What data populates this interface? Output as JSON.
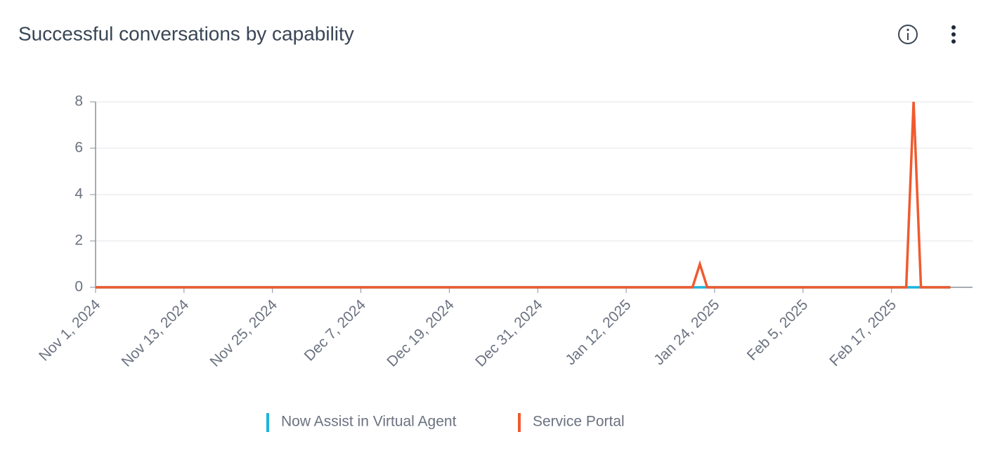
{
  "chart_data": {
    "type": "line",
    "title": "Successful conversations by capability",
    "x": [
      "2024-11-01",
      "2025-01-21",
      "2025-01-22",
      "2025-01-23",
      "2025-02-19",
      "2025-02-20",
      "2025-02-21",
      "2025-02-25"
    ],
    "series": [
      {
        "name": "Now Assist in Virtual Agent",
        "color": "#1cb4de",
        "values": [
          0,
          0,
          0,
          0,
          0,
          0,
          0,
          0
        ]
      },
      {
        "name": "Service Portal",
        "color": "#f05a2e",
        "values": [
          0,
          0,
          1,
          0,
          0,
          8,
          0,
          0
        ]
      }
    ],
    "xlim": [
      "2024-11-01",
      "2025-02-28"
    ],
    "xticks": [
      {
        "value": "2024-11-01",
        "label": "Nov 1, 2024"
      },
      {
        "value": "2024-11-13",
        "label": "Nov 13, 2024"
      },
      {
        "value": "2024-11-25",
        "label": "Nov 25, 2024"
      },
      {
        "value": "2024-12-07",
        "label": "Dec 7, 2024"
      },
      {
        "value": "2024-12-19",
        "label": "Dec 19, 2024"
      },
      {
        "value": "2024-12-31",
        "label": "Dec 31, 2024"
      },
      {
        "value": "2025-01-12",
        "label": "Jan 12, 2025"
      },
      {
        "value": "2025-01-24",
        "label": "Jan 24, 2025"
      },
      {
        "value": "2025-02-05",
        "label": "Feb 5, 2025"
      },
      {
        "value": "2025-02-17",
        "label": "Feb 17, 2025"
      }
    ],
    "ylim": [
      0,
      8
    ],
    "yticks": [
      0,
      2,
      4,
      6,
      8
    ],
    "grid": true
  }
}
